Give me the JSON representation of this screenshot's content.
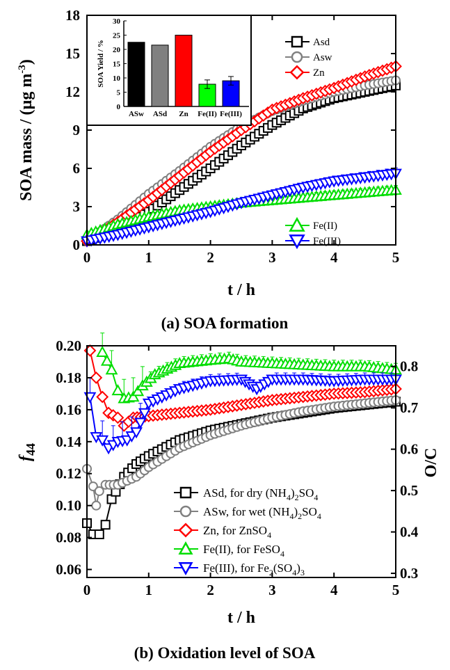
{
  "figure": {
    "caption_a": "(a) SOA formation",
    "caption_b": "(b) Oxidation level of SOA"
  },
  "chart_data": [
    {
      "type": "line",
      "panel": "a",
      "xlabel": "t / h",
      "ylabel": "SOA mass / (µg m",
      "ylabel_superscript": "-3",
      "ylabel_close": ")",
      "xlim": [
        0,
        5
      ],
      "ylim": [
        0,
        18
      ],
      "xticks": [
        0,
        1,
        2,
        3,
        4,
        5
      ],
      "yticks": [
        0,
        3,
        6,
        9,
        12,
        15,
        18
      ],
      "grid": false,
      "legend_upper": {
        "placement": "top-right",
        "entries": [
          "Asd",
          "Asw",
          "Zn"
        ]
      },
      "legend_lower": {
        "placement": "bottom-right",
        "entries": [
          "Fe(II)",
          "Fe(III)"
        ]
      },
      "series": [
        {
          "name": "Asd",
          "color": "#000000",
          "marker": "square",
          "x": [
            0,
            0.5,
            1,
            1.5,
            2,
            2.5,
            3,
            3.5,
            4,
            4.5,
            5
          ],
          "y": [
            0.3,
            1.2,
            2.6,
            4.3,
            6.0,
            7.8,
            9.4,
            10.7,
            11.5,
            12.0,
            12.5
          ]
        },
        {
          "name": "Asw",
          "color": "#808080",
          "marker": "circle",
          "x": [
            0,
            0.5,
            1,
            1.5,
            2,
            2.5,
            3,
            3.5,
            4,
            4.5,
            5
          ],
          "y": [
            0.3,
            2.0,
            4.0,
            5.8,
            7.7,
            9.3,
            10.5,
            11.3,
            12.0,
            12.5,
            12.9
          ]
        },
        {
          "name": "Zn",
          "color": "#ff0000",
          "marker": "diamond",
          "x": [
            0,
            0.5,
            1,
            1.5,
            2,
            2.5,
            3,
            3.5,
            4,
            4.5,
            5
          ],
          "y": [
            0.3,
            1.8,
            3.5,
            5.4,
            7.3,
            9.0,
            10.6,
            11.5,
            12.3,
            13.2,
            14.0
          ]
        },
        {
          "name": "Fe(II)",
          "color": "#00dd00",
          "marker": "triangle-up",
          "x": [
            0,
            0.5,
            1,
            1.5,
            2,
            2.5,
            3,
            3.5,
            4,
            4.5,
            5
          ],
          "y": [
            0.8,
            1.6,
            2.2,
            2.7,
            3.0,
            3.3,
            3.5,
            3.7,
            3.9,
            4.1,
            4.3
          ]
        },
        {
          "name": "Fe(III)",
          "color": "#0000ff",
          "marker": "triangle-down",
          "x": [
            0,
            0.5,
            1,
            1.5,
            2,
            2.5,
            3,
            3.5,
            4,
            4.5,
            5
          ],
          "y": [
            0.3,
            0.8,
            1.4,
            2.0,
            2.6,
            3.3,
            3.9,
            4.5,
            5.0,
            5.3,
            5.6
          ]
        }
      ],
      "inset": {
        "type": "bar",
        "ylabel": "SOA Yield / %",
        "ylim": [
          0,
          30
        ],
        "yticks": [
          0,
          5,
          10,
          15,
          20,
          25,
          30
        ],
        "categories": [
          "ASw",
          "ASd",
          "Zn",
          "Fe(II)",
          "Fe(III)"
        ],
        "values": [
          22.5,
          21.5,
          25,
          7.8,
          9.0
        ],
        "errors": [
          0,
          0,
          0,
          1.5,
          1.5
        ],
        "colors": [
          "#000000",
          "#808080",
          "#ff0000",
          "#00ff00",
          "#0000ff"
        ]
      }
    },
    {
      "type": "line",
      "panel": "b",
      "xlabel": "t / h",
      "ylabel": "f",
      "ylabel_subscript": "44",
      "ylabel_right": "O/C",
      "xlim": [
        0,
        5
      ],
      "ylim": [
        0.055,
        0.2
      ],
      "ylim_right": [
        0.29,
        0.85
      ],
      "xticks": [
        0,
        1,
        2,
        3,
        4,
        5
      ],
      "yticks": [
        0.06,
        0.08,
        0.1,
        0.12,
        0.14,
        0.16,
        0.18,
        0.2
      ],
      "yticks_labels": [
        "0.06",
        "0.08",
        "0.10",
        "0.12",
        "0.14",
        "0.16",
        "0.18",
        "0.20"
      ],
      "yticks_right": [
        0.3,
        0.4,
        0.5,
        0.6,
        0.7,
        0.8
      ],
      "grid": false,
      "legend": {
        "placement": "bottom-right",
        "entries": [
          {
            "text": "ASd, for dry (NH",
            "sub1": "4",
            "mid": ")",
            "sub2": "2",
            "end": "SO",
            "sub3": "4"
          },
          {
            "text": "ASw, for wet  (NH",
            "sub1": "4",
            "mid": ")",
            "sub2": "2",
            "end": "SO",
            "sub3": "4"
          },
          {
            "text": "Zn, for ZnSO",
            "sub1": "4"
          },
          {
            "text": "Fe(II), for FeSO",
            "sub1": "4"
          },
          {
            "text": "Fe(III), for Fe",
            "sub1": "2",
            "mid": "(SO",
            "sub2": "4",
            "end": ")",
            "sub3": "3"
          }
        ]
      },
      "series": [
        {
          "name": "ASd",
          "color": "#000000",
          "marker": "square",
          "x": [
            0,
            0.1,
            0.2,
            0.3,
            0.4,
            0.6,
            0.8,
            1.0,
            1.5,
            2,
            2.5,
            3,
            3.5,
            4,
            4.5,
            5
          ],
          "y": [
            0.089,
            0.082,
            0.082,
            0.088,
            0.104,
            0.118,
            0.126,
            0.131,
            0.141,
            0.147,
            0.151,
            0.155,
            0.158,
            0.161,
            0.163,
            0.165
          ]
        },
        {
          "name": "ASw",
          "color": "#808080",
          "marker": "circle",
          "x": [
            0,
            0.1,
            0.15,
            0.2,
            0.3,
            0.5,
            0.8,
            1.0,
            1.5,
            2,
            2.5,
            3,
            3.5,
            4,
            4.5,
            5
          ],
          "y": [
            0.123,
            0.112,
            0.1,
            0.109,
            0.113,
            0.113,
            0.118,
            0.124,
            0.136,
            0.144,
            0.15,
            0.155,
            0.159,
            0.162,
            0.164,
            0.166
          ]
        },
        {
          "name": "Zn",
          "color": "#ff0000",
          "marker": "diamond",
          "x": [
            0.05,
            0.15,
            0.25,
            0.35,
            0.5,
            0.6,
            0.75,
            1.0,
            1.5,
            2,
            2.5,
            3,
            3.5,
            4,
            4.5,
            5
          ],
          "y": [
            0.197,
            0.18,
            0.168,
            0.158,
            0.155,
            0.15,
            0.155,
            0.156,
            0.158,
            0.16,
            0.163,
            0.166,
            0.168,
            0.17,
            0.171,
            0.173
          ]
        },
        {
          "name": "Fe(II)",
          "color": "#00dd00",
          "marker": "triangle-up",
          "x": [
            0.25,
            0.4,
            0.5,
            0.6,
            0.75,
            0.9,
            1.1,
            1.5,
            2,
            2.3,
            2.5,
            3,
            3.5,
            4,
            4.5,
            5
          ],
          "y": [
            0.196,
            0.185,
            0.172,
            0.167,
            0.168,
            0.175,
            0.182,
            0.189,
            0.191,
            0.192,
            0.19,
            0.189,
            0.188,
            0.187,
            0.187,
            0.185
          ]
        },
        {
          "name": "Fe(III)",
          "color": "#0000ff",
          "marker": "triangle-down",
          "x": [
            0.05,
            0.15,
            0.25,
            0.35,
            0.5,
            0.65,
            0.8,
            1.0,
            1.5,
            2,
            2.5,
            2.75,
            3,
            3.5,
            4,
            4.5,
            5
          ],
          "y": [
            0.168,
            0.143,
            0.141,
            0.136,
            0.14,
            0.141,
            0.146,
            0.164,
            0.173,
            0.178,
            0.179,
            0.173,
            0.179,
            0.179,
            0.178,
            0.179,
            0.179
          ]
        }
      ]
    }
  ]
}
